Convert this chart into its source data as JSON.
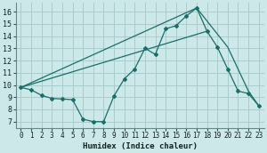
{
  "title": "",
  "xlabel": "Humidex (Indice chaleur)",
  "bg_color": "#cce8e8",
  "grid_color": "#aacccc",
  "line_color": "#1a6e6a",
  "xlim": [
    -0.5,
    23.5
  ],
  "ylim": [
    6.5,
    16.7
  ],
  "xticks": [
    0,
    1,
    2,
    3,
    4,
    5,
    6,
    7,
    8,
    9,
    10,
    11,
    12,
    13,
    14,
    15,
    16,
    17,
    18,
    19,
    20,
    21,
    22,
    23
  ],
  "yticks": [
    7,
    8,
    9,
    10,
    11,
    12,
    13,
    14,
    15,
    16
  ],
  "line1_x": [
    0,
    1,
    2,
    3,
    4,
    5,
    6,
    7,
    8,
    9,
    10,
    11,
    12,
    13,
    14,
    15,
    16,
    17,
    18,
    19,
    20,
    21,
    22,
    23
  ],
  "line1_y": [
    9.8,
    9.6,
    9.15,
    8.9,
    8.85,
    8.8,
    7.2,
    7.0,
    7.0,
    9.1,
    10.5,
    11.3,
    13.0,
    12.5,
    14.6,
    14.85,
    15.65,
    16.3,
    14.4,
    13.1,
    11.3,
    9.5,
    9.3,
    8.3
  ],
  "line2_x": [
    0,
    17,
    20,
    21,
    22,
    23
  ],
  "line2_y": [
    9.8,
    16.3,
    13.1,
    11.3,
    9.5,
    8.3
  ],
  "line3_x": [
    0,
    18
  ],
  "line3_y": [
    9.8,
    14.4
  ]
}
